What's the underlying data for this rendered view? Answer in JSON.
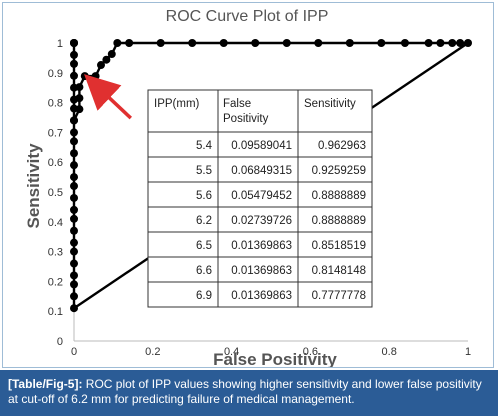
{
  "chart_data": {
    "type": "scatter",
    "title": "ROC Curve Plot of IPP",
    "xlabel": "False Positivity",
    "ylabel": "Sensitivity",
    "xlim": [
      0,
      1
    ],
    "ylim": [
      0,
      1
    ],
    "x_ticks": [
      "0",
      "0.2",
      "0.4",
      "0.6",
      "0.8",
      "1"
    ],
    "y_ticks": [
      "0",
      "0.1",
      "0.2",
      "0.3",
      "0.4",
      "0.5",
      "0.6",
      "0.7",
      "0.8",
      "0.9",
      "1"
    ],
    "grid": false,
    "legend": "none",
    "series": [
      {
        "x": [
          0,
          0,
          0,
          0,
          0,
          0,
          0,
          0,
          0,
          0,
          0,
          0,
          0,
          0,
          0,
          0,
          0,
          0,
          0,
          0,
          0,
          0,
          0,
          0,
          0,
          0,
          0,
          0,
          0.0137,
          0.0137,
          0.0137,
          0.0274,
          0.0548,
          0.0685,
          0.0822,
          0.0959,
          0.11,
          0.14,
          0.22,
          0.3,
          0.38,
          0.46,
          0.54,
          0.62,
          0.7,
          0.78,
          0.84,
          0.9,
          0.93,
          0.96,
          0.98,
          1
        ],
        "y": [
          0.11,
          0.15,
          0.19,
          0.22,
          0.26,
          0.3,
          0.33,
          0.37,
          0.41,
          0.44,
          0.48,
          0.52,
          0.55,
          0.59,
          0.63,
          0.67,
          0.7,
          0.74,
          0.78,
          0.81,
          0.85,
          0.89,
          0.93,
          0.96,
          1,
          1,
          1,
          0.74,
          0.778,
          0.815,
          0.852,
          0.889,
          0.889,
          0.926,
          0.944,
          0.963,
          1,
          1,
          1,
          1,
          1,
          1,
          1,
          1,
          1,
          1,
          1,
          1,
          1,
          1,
          1,
          1
        ]
      },
      {
        "x": [
          0,
          1
        ],
        "y": [
          0.11,
          1
        ]
      }
    ],
    "table": {
      "headers": [
        "IPP(mm)",
        "False Positivity",
        "Sensitivity"
      ],
      "rows": [
        [
          "5.4",
          "0.09589041",
          "0.962963"
        ],
        [
          "5.5",
          "0.06849315",
          "0.9259259"
        ],
        [
          "5.6",
          "0.05479452",
          "0.8888889"
        ],
        [
          "6.2",
          "0.02739726",
          "0.8888889"
        ],
        [
          "6.5",
          "0.01369863",
          "0.8518519"
        ],
        [
          "6.6",
          "0.01369863",
          "0.8148148"
        ],
        [
          "6.9",
          "0.01369863",
          "0.7777778"
        ]
      ],
      "highlight_row": 3,
      "highlight_color": "#e03030"
    },
    "annotation": {
      "type": "arrow",
      "color": "#e03030",
      "points_to": [
        0.0274,
        0.889
      ]
    }
  },
  "caption": {
    "label": "[Table/Fig-5]:",
    "text": " ROC plot of IPP values showing higher sensitivity and lower false positivity at cut-off of 6.2 mm for predicting failure of medical management."
  }
}
